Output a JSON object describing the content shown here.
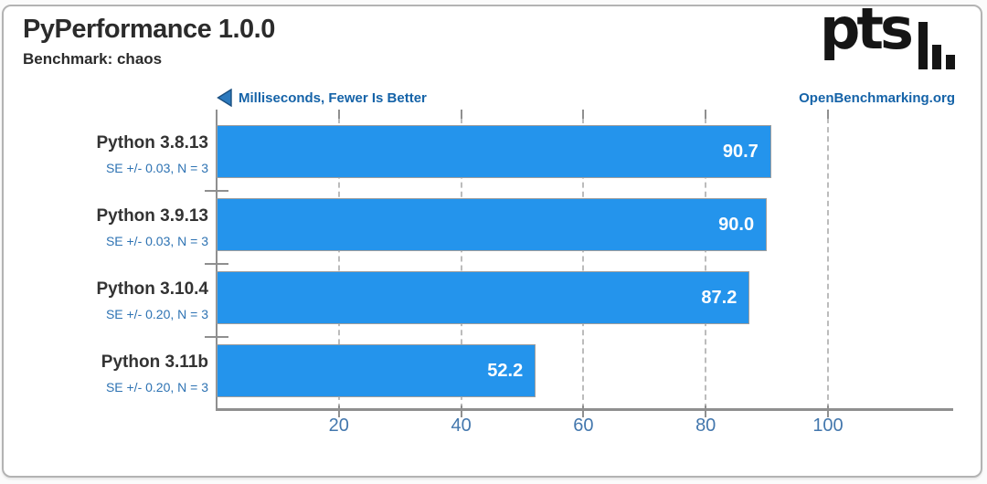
{
  "header": {
    "title": "PyPerformance 1.0.0",
    "subtitle": "Benchmark: chaos",
    "logo_text": "pts",
    "site_link": "OpenBenchmarking.org"
  },
  "chart_data": {
    "type": "bar",
    "orientation": "horizontal",
    "title": "PyPerformance 1.0.0",
    "subtitle": "Benchmark: chaos",
    "unit_label": "Milliseconds, Fewer Is Better",
    "categories": [
      "Python 3.8.13",
      "Python 3.9.13",
      "Python 3.10.4",
      "Python 3.11b"
    ],
    "values": [
      90.7,
      90.0,
      87.2,
      52.2
    ],
    "value_labels": [
      "90.7",
      "90.0",
      "87.2",
      "52.2"
    ],
    "error_labels": [
      "SE +/- 0.03, N = 3",
      "SE +/- 0.03, N = 3",
      "SE +/- 0.20, N = 3",
      "SE +/- 0.20, N = 3"
    ],
    "xticks": [
      20,
      40,
      60,
      80,
      100
    ],
    "xlim": [
      0,
      120
    ],
    "grid": "vertical-dashed",
    "legend_position": "none",
    "colors": {
      "bar": "#2494ec",
      "bar_border": "#9e9e9e",
      "value_text": "#ffffff",
      "category_text": "#333333",
      "error_text": "#2e73b3",
      "axis_tick_text": "#4377ad",
      "accent_blue": "#1563a8",
      "axis_line": "#8f8f8f"
    }
  }
}
